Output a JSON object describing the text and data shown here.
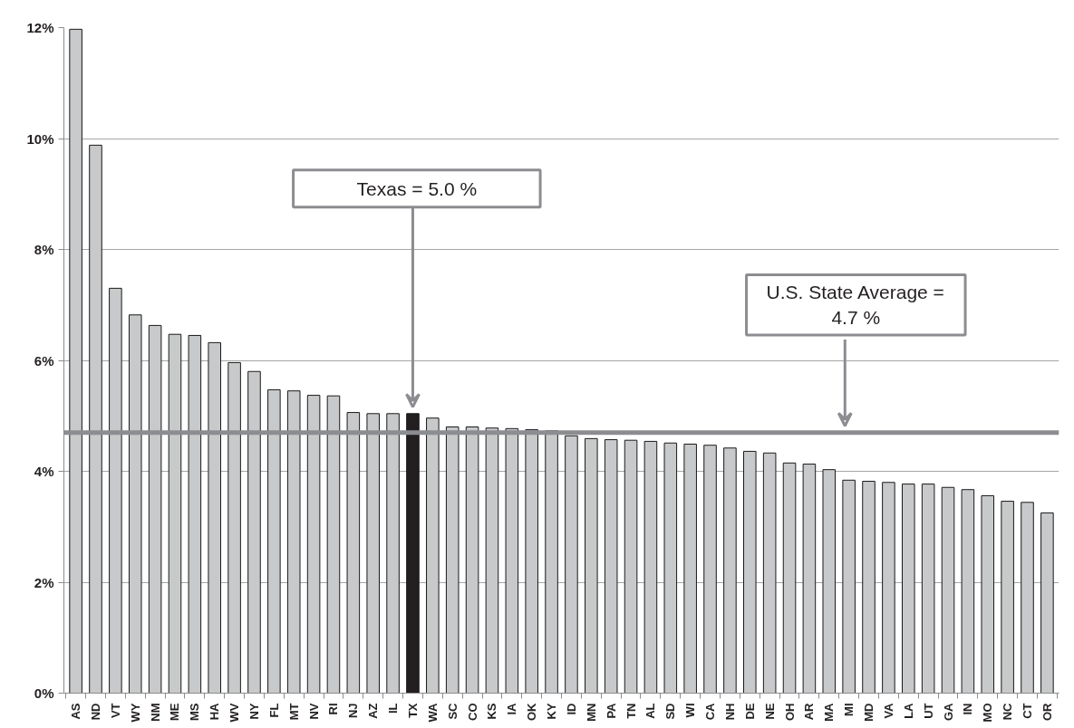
{
  "chart_data": {
    "type": "bar",
    "categories": [
      "AS",
      "ND",
      "VT",
      "WY",
      "NM",
      "ME",
      "MS",
      "HA",
      "WV",
      "NY",
      "FL",
      "MT",
      "NV",
      "RI",
      "NJ",
      "AZ",
      "IL",
      "TX",
      "WA",
      "SC",
      "CO",
      "KS",
      "IA",
      "OK",
      "KY",
      "ID",
      "MN",
      "PA",
      "TN",
      "AL",
      "SD",
      "WI",
      "CA",
      "NH",
      "DE",
      "NE",
      "OH",
      "AR",
      "MA",
      "MI",
      "MD",
      "VA",
      "LA",
      "UT",
      "GA",
      "IN",
      "MO",
      "NC",
      "CT",
      "OR"
    ],
    "values": [
      11.97,
      9.88,
      7.3,
      6.82,
      6.63,
      6.47,
      6.45,
      6.32,
      5.96,
      5.8,
      5.47,
      5.45,
      5.37,
      5.36,
      5.06,
      5.04,
      5.04,
      5.04,
      4.96,
      4.8,
      4.8,
      4.78,
      4.77,
      4.75,
      4.73,
      4.64,
      4.59,
      4.57,
      4.56,
      4.54,
      4.51,
      4.49,
      4.47,
      4.42,
      4.36,
      4.33,
      4.15,
      4.13,
      4.03,
      3.84,
      3.82,
      3.8,
      3.77,
      3.77,
      3.71,
      3.67,
      3.56,
      3.46,
      3.44,
      3.25
    ],
    "colors": [
      "#c8c9cb",
      "#c8c9cb",
      "#c8c9cb",
      "#c8c9cb",
      "#c8c9cb",
      "#c8c9cb",
      "#c8c9cb",
      "#c8c9cb",
      "#c8c9cb",
      "#c8c9cb",
      "#c8c9cb",
      "#c8c9cb",
      "#c8c9cb",
      "#c8c9cb",
      "#c8c9cb",
      "#c8c9cb",
      "#c8c9cb",
      "#231f20",
      "#c8c9cb",
      "#c8c9cb",
      "#c8c9cb",
      "#c8c9cb",
      "#c8c9cb",
      "#c8c9cb",
      "#c8c9cb",
      "#c8c9cb",
      "#c8c9cb",
      "#c8c9cb",
      "#c8c9cb",
      "#c8c9cb",
      "#c8c9cb",
      "#c8c9cb",
      "#c8c9cb",
      "#c8c9cb",
      "#c8c9cb",
      "#c8c9cb",
      "#c8c9cb",
      "#c8c9cb",
      "#c8c9cb",
      "#c8c9cb",
      "#c8c9cb",
      "#c8c9cb",
      "#c8c9cb",
      "#c8c9cb",
      "#c8c9cb",
      "#c8c9cb",
      "#c8c9cb",
      "#c8c9cb",
      "#c8c9cb",
      "#c8c9cb"
    ],
    "ylim": [
      0,
      12
    ],
    "yticks": [
      {
        "value": 0,
        "label": "0%"
      },
      {
        "value": 2,
        "label": "2%"
      },
      {
        "value": 4,
        "label": "4%"
      },
      {
        "value": 6,
        "label": "6%"
      },
      {
        "value": 8,
        "label": "8%"
      },
      {
        "value": 10,
        "label": "10%"
      },
      {
        "value": 12,
        "label": "12%"
      }
    ],
    "grid": "y",
    "ref_lines": [
      {
        "axis": "y",
        "value": 4.7,
        "color": "#8c8d90"
      }
    ],
    "annotations": [
      {
        "text": "Texas = 5.0 %",
        "x": "TX",
        "y": 5.04
      },
      "U.S. State Average = 4.7 %"
    ]
  }
}
